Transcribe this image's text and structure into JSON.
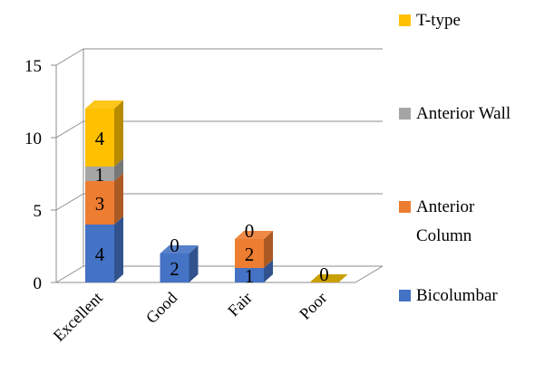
{
  "chart_data": {
    "type": "bar",
    "subtype": "stacked-3d",
    "title": "",
    "xlabel": "",
    "ylabel": "",
    "ylim": [
      0,
      15
    ],
    "yticks": [
      0,
      5,
      10,
      15
    ],
    "grid": true,
    "legend_position": "right",
    "categories": [
      "Excellent",
      "Good",
      "Fair",
      "Poor"
    ],
    "series": [
      {
        "name": "Bicolumbar",
        "color": "#4472C4",
        "values": [
          4,
          2,
          1,
          0
        ]
      },
      {
        "name": "Anterior Column",
        "color": "#ED7D31",
        "values": [
          3,
          0,
          2,
          0
        ]
      },
      {
        "name": "Anterior Wall",
        "color": "#A5A5A5",
        "values": [
          1,
          0,
          0,
          0
        ]
      },
      {
        "name": "T-type",
        "color": "#FFC000",
        "values": [
          4,
          0,
          0,
          0
        ]
      }
    ],
    "data_labels": {
      "Excellent": [
        "4",
        "3",
        "1",
        "4"
      ],
      "Good": [
        "2",
        "0"
      ],
      "Fair": [
        "1",
        "2",
        "0"
      ],
      "Poor": [
        "0"
      ]
    },
    "tick_labels": [
      "0",
      "5",
      "10",
      "15"
    ]
  }
}
